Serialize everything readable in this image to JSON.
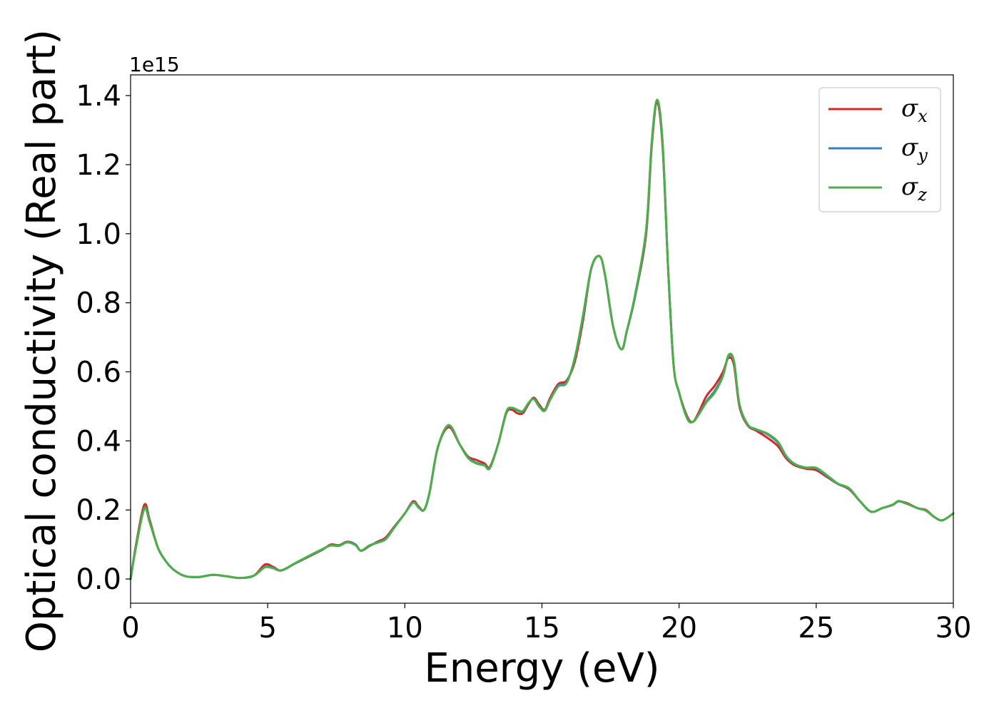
{
  "chart_data": {
    "type": "line",
    "title": "",
    "xlabel": "Energy (eV)",
    "ylabel": "Optical conductivity (Real part)",
    "y_offset_label": "1e15",
    "xlim": [
      0,
      30
    ],
    "ylim": [
      -0.07,
      1.46
    ],
    "x_ticks": [
      0,
      5,
      10,
      15,
      20,
      25,
      30
    ],
    "y_ticks": [
      0.0,
      0.2,
      0.4,
      0.6,
      0.8,
      1.0,
      1.2,
      1.4
    ],
    "y_tick_labels": [
      "0.0",
      "0.2",
      "0.4",
      "0.6",
      "0.8",
      "1.0",
      "1.2",
      "1.4"
    ],
    "grid": false,
    "legend_position": "top-right",
    "series": [
      {
        "name": "σx",
        "symbol": "σ",
        "subscript": "x",
        "color": "#d62728",
        "x": [
          0,
          0.2,
          0.5,
          0.7,
          1.0,
          1.3,
          1.6,
          2.0,
          2.5,
          3.0,
          3.5,
          4.0,
          4.5,
          4.9,
          5.2,
          5.5,
          6.0,
          6.5,
          7.0,
          7.3,
          7.6,
          7.9,
          8.2,
          8.4,
          8.7,
          9.0,
          9.3,
          9.6,
          10.0,
          10.3,
          10.5,
          10.7,
          10.9,
          11.2,
          11.6,
          12.0,
          12.3,
          12.6,
          12.9,
          13.1,
          13.4,
          13.7,
          13.9,
          14.1,
          14.3,
          14.5,
          14.7,
          14.9,
          15.1,
          15.3,
          15.6,
          15.9,
          16.2,
          16.5,
          16.8,
          17.1,
          17.3,
          17.6,
          17.9,
          18.1,
          18.4,
          18.8,
          19.0,
          19.2,
          19.4,
          19.6,
          19.8,
          20.0,
          20.3,
          20.5,
          20.7,
          21.0,
          21.3,
          21.6,
          21.8,
          22.0,
          22.2,
          22.5,
          22.8,
          23.2,
          23.6,
          23.9,
          24.2,
          24.6,
          25.0,
          25.4,
          25.8,
          26.2,
          26.6,
          27.0,
          27.4,
          27.8,
          28.0,
          28.3,
          28.7,
          29.0,
          29.3,
          29.6,
          30.0
        ],
        "values": [
          0.0,
          0.1,
          0.215,
          0.17,
          0.09,
          0.05,
          0.025,
          0.008,
          0.006,
          0.012,
          0.008,
          0.003,
          0.01,
          0.042,
          0.035,
          0.025,
          0.045,
          0.065,
          0.085,
          0.1,
          0.098,
          0.108,
          0.1,
          0.082,
          0.095,
          0.108,
          0.12,
          0.15,
          0.19,
          0.225,
          0.21,
          0.2,
          0.25,
          0.38,
          0.44,
          0.39,
          0.355,
          0.345,
          0.335,
          0.325,
          0.39,
          0.48,
          0.49,
          0.48,
          0.48,
          0.505,
          0.525,
          0.505,
          0.49,
          0.525,
          0.565,
          0.575,
          0.63,
          0.75,
          0.9,
          0.935,
          0.88,
          0.73,
          0.665,
          0.72,
          0.82,
          1.0,
          1.25,
          1.38,
          1.25,
          0.9,
          0.62,
          0.54,
          0.47,
          0.455,
          0.48,
          0.53,
          0.56,
          0.6,
          0.64,
          0.62,
          0.5,
          0.445,
          0.43,
          0.41,
          0.385,
          0.35,
          0.33,
          0.32,
          0.315,
          0.295,
          0.275,
          0.26,
          0.225,
          0.195,
          0.205,
          0.215,
          0.225,
          0.22,
          0.205,
          0.2,
          0.18,
          0.17,
          0.19
        ]
      },
      {
        "name": "σy",
        "symbol": "σ",
        "subscript": "y",
        "color": "#377eb8",
        "x": [
          0,
          0.2,
          0.5,
          0.7,
          1.0,
          1.3,
          1.6,
          2.0,
          2.5,
          3.0,
          3.5,
          4.0,
          4.5,
          4.9,
          5.2,
          5.5,
          6.0,
          6.5,
          7.0,
          7.3,
          7.6,
          7.9,
          8.2,
          8.4,
          8.7,
          9.0,
          9.3,
          9.6,
          10.0,
          10.3,
          10.5,
          10.7,
          10.9,
          11.2,
          11.6,
          12.0,
          12.3,
          12.6,
          12.9,
          13.1,
          13.4,
          13.7,
          13.9,
          14.1,
          14.3,
          14.5,
          14.7,
          14.9,
          15.1,
          15.3,
          15.6,
          15.9,
          16.2,
          16.5,
          16.8,
          17.1,
          17.3,
          17.6,
          17.9,
          18.1,
          18.4,
          18.8,
          19.0,
          19.2,
          19.4,
          19.6,
          19.8,
          20.0,
          20.3,
          20.5,
          20.7,
          21.0,
          21.3,
          21.6,
          21.8,
          22.0,
          22.2,
          22.5,
          22.8,
          23.2,
          23.6,
          23.9,
          24.2,
          24.6,
          25.0,
          25.4,
          25.8,
          26.2,
          26.6,
          27.0,
          27.4,
          27.8,
          28.0,
          28.3,
          28.7,
          29.0,
          29.3,
          29.6,
          30.0
        ],
        "values": [
          0.0,
          0.095,
          0.205,
          0.165,
          0.09,
          0.05,
          0.025,
          0.008,
          0.006,
          0.012,
          0.008,
          0.003,
          0.01,
          0.035,
          0.032,
          0.025,
          0.045,
          0.066,
          0.086,
          0.098,
          0.097,
          0.107,
          0.099,
          0.082,
          0.096,
          0.106,
          0.116,
          0.148,
          0.19,
          0.222,
          0.208,
          0.2,
          0.25,
          0.38,
          0.445,
          0.39,
          0.352,
          0.337,
          0.33,
          0.322,
          0.39,
          0.483,
          0.495,
          0.488,
          0.485,
          0.508,
          0.522,
          0.5,
          0.488,
          0.52,
          0.56,
          0.57,
          0.64,
          0.76,
          0.9,
          0.935,
          0.88,
          0.73,
          0.665,
          0.72,
          0.82,
          1.01,
          1.26,
          1.385,
          1.26,
          0.9,
          0.62,
          0.54,
          0.465,
          0.455,
          0.475,
          0.515,
          0.545,
          0.59,
          0.645,
          0.63,
          0.505,
          0.447,
          0.433,
          0.42,
          0.395,
          0.355,
          0.333,
          0.322,
          0.32,
          0.298,
          0.275,
          0.262,
          0.225,
          0.195,
          0.205,
          0.215,
          0.225,
          0.218,
          0.205,
          0.198,
          0.18,
          0.17,
          0.19
        ]
      },
      {
        "name": "σz",
        "symbol": "σ",
        "subscript": "z",
        "color": "#4daf4a",
        "x": [
          0,
          0.2,
          0.5,
          0.7,
          1.0,
          1.3,
          1.6,
          2.0,
          2.5,
          3.0,
          3.5,
          4.0,
          4.5,
          4.9,
          5.2,
          5.5,
          6.0,
          6.5,
          7.0,
          7.3,
          7.6,
          7.9,
          8.2,
          8.4,
          8.7,
          9.0,
          9.3,
          9.6,
          10.0,
          10.3,
          10.5,
          10.7,
          10.9,
          11.2,
          11.6,
          12.0,
          12.3,
          12.6,
          12.9,
          13.1,
          13.4,
          13.7,
          13.9,
          14.1,
          14.3,
          14.5,
          14.7,
          14.9,
          15.1,
          15.3,
          15.6,
          15.9,
          16.2,
          16.5,
          16.8,
          17.1,
          17.3,
          17.6,
          17.9,
          18.1,
          18.4,
          18.8,
          19.0,
          19.2,
          19.4,
          19.6,
          19.8,
          20.0,
          20.3,
          20.5,
          20.7,
          21.0,
          21.3,
          21.6,
          21.8,
          22.0,
          22.2,
          22.5,
          22.8,
          23.2,
          23.6,
          23.9,
          24.2,
          24.6,
          25.0,
          25.4,
          25.8,
          26.2,
          26.6,
          27.0,
          27.4,
          27.8,
          28.0,
          28.3,
          28.7,
          29.0,
          29.3,
          29.6,
          30.0
        ],
        "values": [
          0.0,
          0.093,
          0.203,
          0.163,
          0.09,
          0.05,
          0.025,
          0.008,
          0.006,
          0.012,
          0.008,
          0.003,
          0.01,
          0.034,
          0.031,
          0.025,
          0.046,
          0.067,
          0.087,
          0.097,
          0.096,
          0.106,
          0.098,
          0.082,
          0.097,
          0.105,
          0.115,
          0.147,
          0.19,
          0.221,
          0.207,
          0.2,
          0.25,
          0.38,
          0.446,
          0.39,
          0.351,
          0.335,
          0.329,
          0.321,
          0.39,
          0.484,
          0.496,
          0.49,
          0.486,
          0.509,
          0.521,
          0.499,
          0.487,
          0.519,
          0.558,
          0.568,
          0.642,
          0.765,
          0.9,
          0.935,
          0.88,
          0.73,
          0.665,
          0.72,
          0.825,
          1.012,
          1.262,
          1.388,
          1.262,
          0.9,
          0.62,
          0.54,
          0.464,
          0.455,
          0.474,
          0.512,
          0.54,
          0.588,
          0.648,
          0.632,
          0.507,
          0.448,
          0.434,
          0.422,
          0.398,
          0.357,
          0.334,
          0.323,
          0.322,
          0.3,
          0.276,
          0.263,
          0.225,
          0.195,
          0.205,
          0.216,
          0.226,
          0.218,
          0.205,
          0.198,
          0.18,
          0.17,
          0.19
        ]
      }
    ]
  }
}
